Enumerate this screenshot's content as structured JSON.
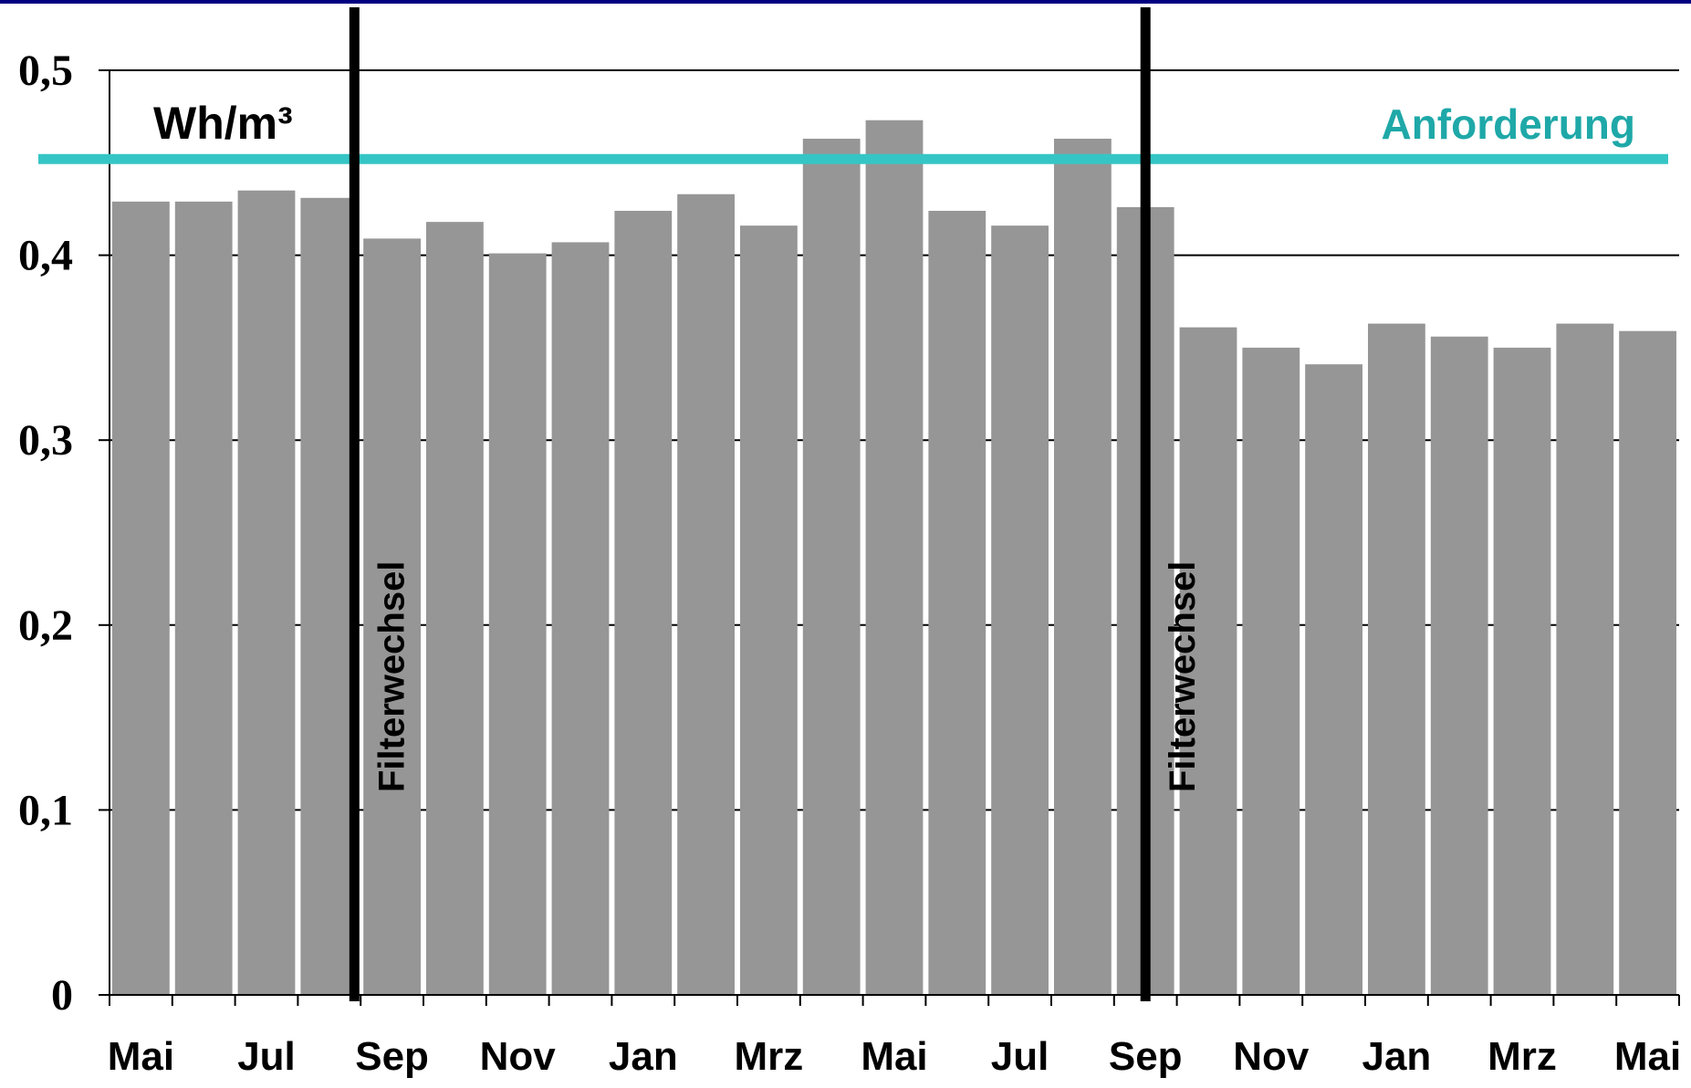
{
  "chart_data": {
    "type": "bar",
    "ylabel": "Wh/m³",
    "ylim": [
      0,
      0.5
    ],
    "yticks": [
      "0",
      "0,1",
      "0,2",
      "0,3",
      "0,4",
      "0,5"
    ],
    "grid": true,
    "values": [
      0.429,
      0.429,
      0.435,
      0.431,
      0.409,
      0.418,
      0.401,
      0.407,
      0.424,
      0.433,
      0.416,
      0.463,
      0.473,
      0.424,
      0.416,
      0.463,
      0.426,
      0.361,
      0.35,
      0.341,
      0.363,
      0.356,
      0.35,
      0.363,
      0.359
    ],
    "xticklabels": [
      "Mai",
      "Jul",
      "Sep",
      "Nov",
      "Jan",
      "Mrz",
      "Mai",
      "Jul",
      "Sep",
      "Nov",
      "Jan",
      "Mrz",
      "Mai"
    ],
    "label_every": 2,
    "reference_line": {
      "label": "Anforderung",
      "value": 0.452,
      "color": "#36C5C5",
      "label_color": "#1FA8A8"
    },
    "events": [
      {
        "label": "Filterwechsel",
        "after_bar": 3.9
      },
      {
        "label": "Filterwechsel",
        "after_bar": 16.5
      }
    ],
    "bar_color": "#969696",
    "frame_color": "#000080"
  }
}
